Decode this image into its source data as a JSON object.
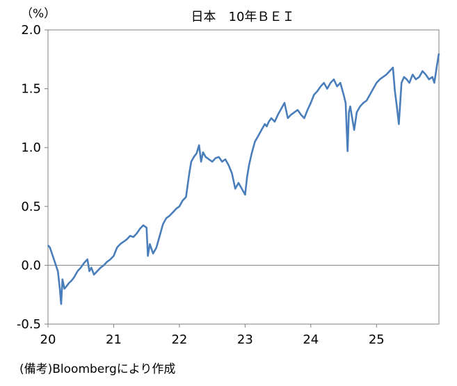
{
  "chart_data": {
    "type": "line",
    "title": "日本　10年ＢＥＩ",
    "unit_label": "（%）",
    "xlabel": "",
    "ylabel": "",
    "ylim": [
      -0.5,
      2.0
    ],
    "xlim": [
      2020.0,
      2025.95
    ],
    "yticks": [
      "2.0",
      "1.5",
      "1.0",
      "0.5",
      "0.0",
      "-0.5"
    ],
    "xticks": [
      "20",
      "21",
      "22",
      "23",
      "24",
      "25"
    ],
    "grid": false,
    "zero_line": true,
    "line_color": "#4a7ebb",
    "series": [
      {
        "x": [
          2020.0,
          2020.03,
          2020.06,
          2020.09,
          2020.12,
          2020.15,
          2020.18,
          2020.2,
          2020.22,
          2020.25,
          2020.28,
          2020.32,
          2020.36,
          2020.4,
          2020.45,
          2020.5,
          2020.55,
          2020.6,
          2020.63,
          2020.66,
          2020.7,
          2020.75,
          2020.8,
          2020.85,
          2020.9,
          2020.95,
          2021.0,
          2021.05,
          2021.1,
          2021.15,
          2021.2,
          2021.25,
          2021.3,
          2021.35,
          2021.4,
          2021.45,
          2021.5,
          2021.52,
          2021.55,
          2021.6,
          2021.65,
          2021.7,
          2021.75,
          2021.8,
          2021.85,
          2021.9,
          2021.95,
          2022.0,
          2022.05,
          2022.1,
          2022.15,
          2022.18,
          2022.22,
          2022.26,
          2022.3,
          2022.33,
          2022.36,
          2022.4,
          2022.45,
          2022.5,
          2022.55,
          2022.6,
          2022.65,
          2022.7,
          2022.75,
          2022.8,
          2022.85,
          2022.9,
          2022.95,
          2023.0,
          2023.03,
          2023.06,
          2023.1,
          2023.15,
          2023.2,
          2023.25,
          2023.3,
          2023.33,
          2023.36,
          2023.4,
          2023.45,
          2023.5,
          2023.55,
          2023.6,
          2023.65,
          2023.7,
          2023.75,
          2023.8,
          2023.85,
          2023.9,
          2023.95,
          2024.0,
          2024.05,
          2024.1,
          2024.15,
          2024.2,
          2024.25,
          2024.3,
          2024.35,
          2024.4,
          2024.45,
          2024.5,
          2024.53,
          2024.56,
          2024.58,
          2024.6,
          2024.63,
          2024.66,
          2024.7,
          2024.75,
          2024.8,
          2024.85,
          2024.9,
          2024.95,
          2025.0,
          2025.05,
          2025.1,
          2025.15,
          2025.2,
          2025.25,
          2025.28,
          2025.31,
          2025.34,
          2025.38,
          2025.42,
          2025.46,
          2025.5,
          2025.55,
          2025.6,
          2025.65,
          2025.7,
          2025.75,
          2025.8,
          2025.85,
          2025.88,
          2025.92,
          2025.95
        ],
        "values": [
          0.17,
          0.15,
          0.1,
          0.05,
          0.0,
          -0.05,
          -0.2,
          -0.33,
          -0.12,
          -0.2,
          -0.18,
          -0.15,
          -0.13,
          -0.1,
          -0.05,
          -0.02,
          0.02,
          0.05,
          -0.05,
          -0.02,
          -0.08,
          -0.05,
          -0.02,
          0.0,
          0.03,
          0.05,
          0.08,
          0.15,
          0.18,
          0.2,
          0.22,
          0.25,
          0.24,
          0.27,
          0.31,
          0.34,
          0.32,
          0.08,
          0.18,
          0.1,
          0.15,
          0.25,
          0.35,
          0.4,
          0.42,
          0.45,
          0.48,
          0.5,
          0.55,
          0.58,
          0.78,
          0.88,
          0.92,
          0.95,
          1.02,
          0.88,
          0.96,
          0.92,
          0.9,
          0.88,
          0.91,
          0.92,
          0.88,
          0.9,
          0.85,
          0.78,
          0.65,
          0.7,
          0.65,
          0.6,
          0.75,
          0.85,
          0.95,
          1.05,
          1.1,
          1.15,
          1.2,
          1.18,
          1.22,
          1.25,
          1.22,
          1.28,
          1.33,
          1.38,
          1.25,
          1.28,
          1.3,
          1.32,
          1.28,
          1.25,
          1.32,
          1.38,
          1.45,
          1.48,
          1.52,
          1.55,
          1.5,
          1.55,
          1.58,
          1.52,
          1.55,
          1.45,
          1.38,
          0.97,
          1.3,
          1.35,
          1.25,
          1.15,
          1.3,
          1.35,
          1.38,
          1.4,
          1.45,
          1.5,
          1.55,
          1.58,
          1.6,
          1.62,
          1.65,
          1.68,
          1.48,
          1.35,
          1.2,
          1.55,
          1.6,
          1.58,
          1.55,
          1.62,
          1.58,
          1.6,
          1.65,
          1.62,
          1.58,
          1.6,
          1.55,
          1.7,
          1.8
        ]
      }
    ]
  },
  "source_note": "(備考)Bloombergにより作成"
}
